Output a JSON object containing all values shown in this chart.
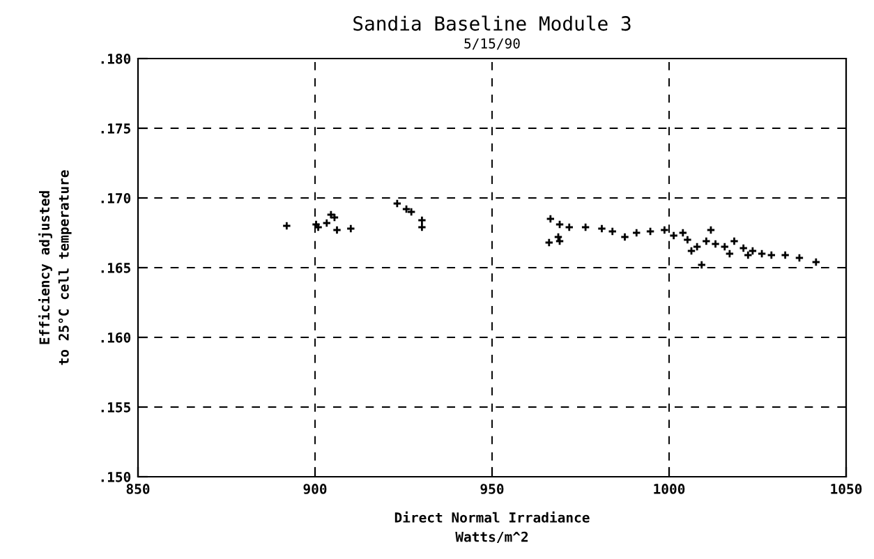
{
  "chart_data": {
    "type": "scatter",
    "title": "Sandia Baseline Module 3",
    "subtitle": "5/15/90",
    "xlabel": "Direct Normal Irradiance\nWatts/m^2",
    "ylabel": "Efficiency adjusted\nto 25°C cell temperature",
    "x": [
      892.0,
      900.3,
      900.9,
      903.3,
      904.5,
      905.5,
      906.2,
      910.1,
      923.2,
      925.8,
      927.2,
      930.2,
      930.2,
      966.5,
      969.1,
      966.1,
      968.7,
      969.1,
      971.8,
      976.4,
      981.0,
      984.0,
      987.5,
      990.8,
      994.7,
      998.7,
      1001.3,
      1005.2,
      1007.9,
      1010.5,
      1013.1,
      1015.7,
      1018.4,
      1021.0,
      1023.6,
      1026.2,
      1028.9,
      1032.8,
      1036.8,
      1041.5,
      1009.2,
      1011.8,
      1006.3,
      1017.1,
      1022.3,
      1003.9
    ],
    "series": [
      {
        "color": "#000000",
        "values": [
          0.168,
          0.1681,
          0.1679,
          0.1682,
          0.1688,
          0.1686,
          0.1677,
          0.1678,
          0.1696,
          0.1692,
          0.169,
          0.1684,
          0.1679,
          0.1685,
          0.1681,
          0.1668,
          0.1672,
          0.1669,
          0.1679,
          0.1679,
          0.1678,
          0.1676,
          0.1672,
          0.1675,
          0.1676,
          0.1677,
          0.1673,
          0.167,
          0.1665,
          0.1669,
          0.1667,
          0.1665,
          0.1669,
          0.1664,
          0.1662,
          0.166,
          0.1659,
          0.1659,
          0.1657,
          0.1654,
          0.1652,
          0.1677,
          0.1662,
          0.166,
          0.1659,
          0.1675
        ]
      }
    ],
    "xlim": [
      850,
      1050
    ],
    "xticks": [
      850,
      900,
      950,
      1000,
      1050
    ],
    "ylim": [
      0.15,
      0.18
    ],
    "yticks": [
      {
        "value": 0.15,
        "label": ".150"
      },
      {
        "value": 0.155,
        "label": ".155"
      },
      {
        "value": 0.16,
        "label": ".160"
      },
      {
        "value": 0.165,
        "label": ".165"
      },
      {
        "value": 0.17,
        "label": ".170"
      },
      {
        "value": 0.175,
        "label": ".175"
      },
      {
        "value": 0.18,
        "label": ".180"
      }
    ],
    "grid": true,
    "marker": "cross"
  }
}
